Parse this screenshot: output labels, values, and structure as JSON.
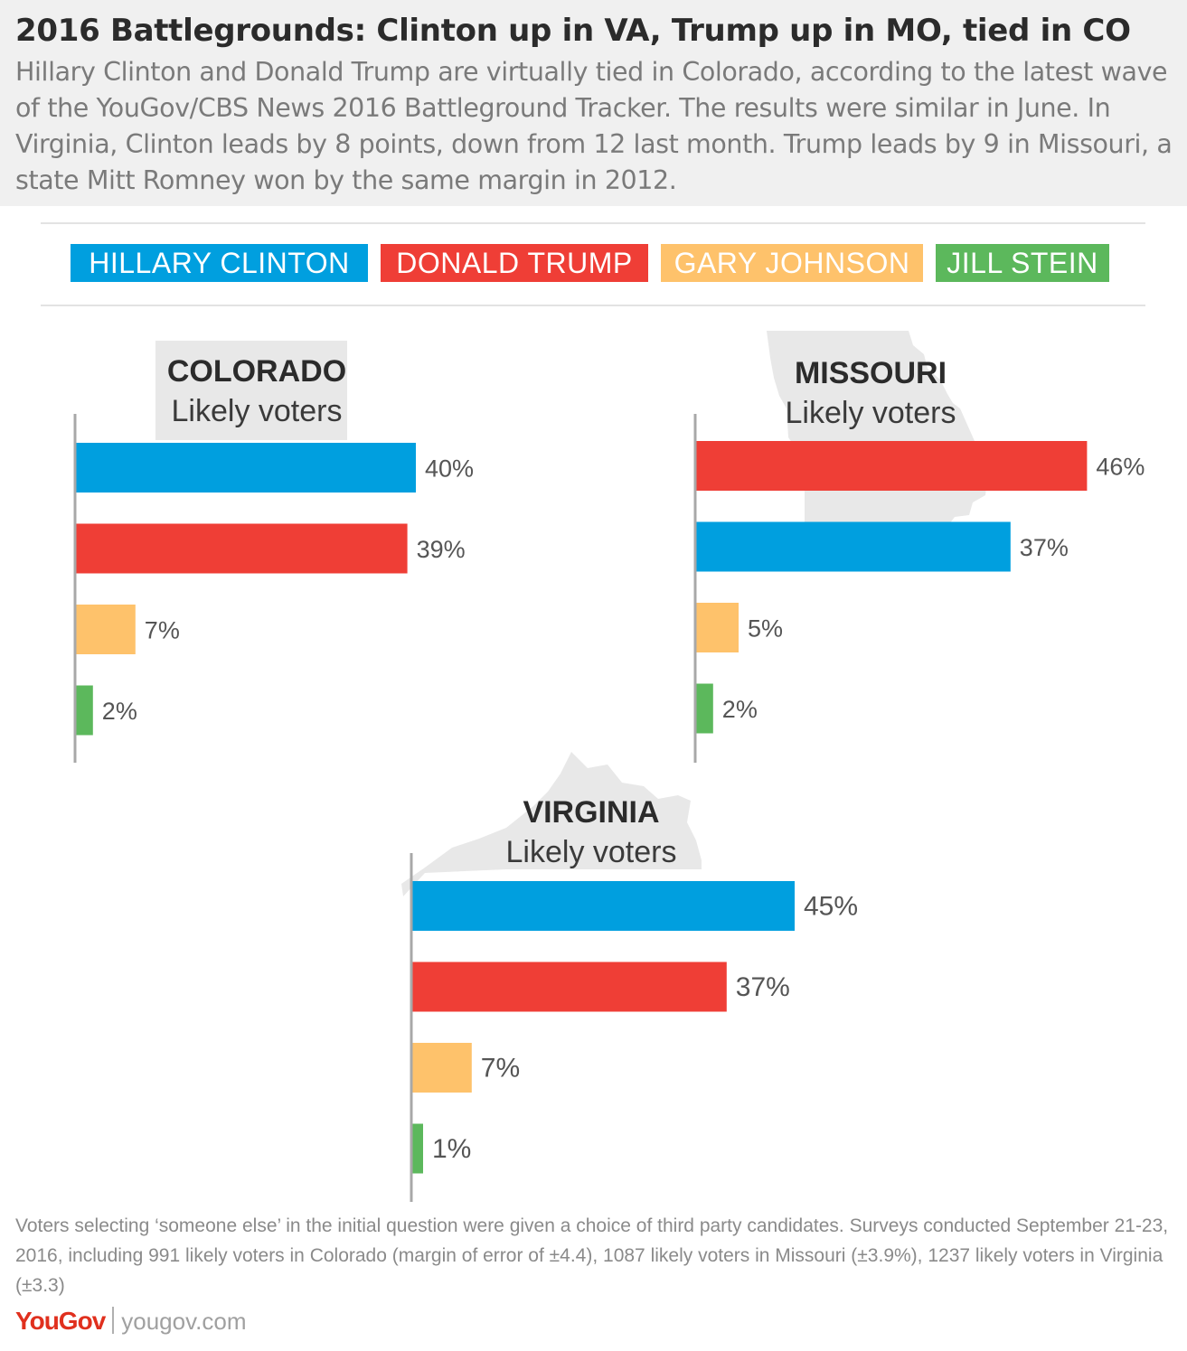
{
  "header": {
    "title": "2016 Battlegrounds: Clinton up in VA, Trump up in MO, tied in CO",
    "subtitle": "Hillary Clinton and Donald Trump are virtually tied in Colorado, according to the latest wave of the YouGov/CBS News 2016 Battleground Tracker. The results were similar in June. In Virginia, Clinton leads by 8 points, down from 12 last month. Trump leads by 9 in Missouri, a state Mitt Romney won by the same margin in 2012."
  },
  "legend": [
    {
      "label": "HILLARY CLINTON",
      "color": "#009fdf"
    },
    {
      "label": "DONALD TRUMP",
      "color": "#ef3e36"
    },
    {
      "label": "GARY JOHNSON",
      "color": "#fec26b"
    },
    {
      "label": "JILL STEIN",
      "color": "#5cb85c"
    }
  ],
  "chart_data": [
    {
      "type": "bar",
      "title": "COLORADO",
      "subtitle": "Likely voters",
      "categories": [
        "HILLARY CLINTON",
        "DONALD TRUMP",
        "GARY JOHNSON",
        "JILL STEIN"
      ],
      "values": [
        40,
        39,
        7,
        2
      ],
      "labels": [
        "40%",
        "39%",
        "7%",
        "2%"
      ],
      "colors": [
        "#009fdf",
        "#ef3e36",
        "#fec26b",
        "#5cb85c"
      ],
      "background_shape": "colorado-map-icon"
    },
    {
      "type": "bar",
      "title": "MISSOURI",
      "subtitle": "Likely voters",
      "categories": [
        "DONALD TRUMP",
        "HILLARY CLINTON",
        "GARY JOHNSON",
        "JILL STEIN"
      ],
      "values": [
        46,
        37,
        5,
        2
      ],
      "labels": [
        "46%",
        "37%",
        "5%",
        "2%"
      ],
      "colors": [
        "#ef3e36",
        "#009fdf",
        "#fec26b",
        "#5cb85c"
      ],
      "background_shape": "missouri-map-icon"
    },
    {
      "type": "bar",
      "title": "VIRGINIA",
      "subtitle": "Likely voters",
      "categories": [
        "HILLARY CLINTON",
        "DONALD TRUMP",
        "GARY JOHNSON",
        "JILL STEIN"
      ],
      "values": [
        45,
        37,
        7,
        1
      ],
      "labels": [
        "45%",
        "37%",
        "7%",
        "1%"
      ],
      "colors": [
        "#009fdf",
        "#ef3e36",
        "#fec26b",
        "#5cb85c"
      ],
      "background_shape": "virginia-map-icon"
    }
  ],
  "footnote": "Voters selecting ‘someone else’ in the initial question were given a choice of third party candidates. Surveys conducted September 21-23, 2016, including 991 likely voters in Colorado (margin of error of ±4.4), 1087 likely voters in Missouri (±3.9%), 1237 likely voters in Virginia (±3.3)",
  "brand": {
    "logo": "YouGov",
    "url": "yougov.com"
  }
}
